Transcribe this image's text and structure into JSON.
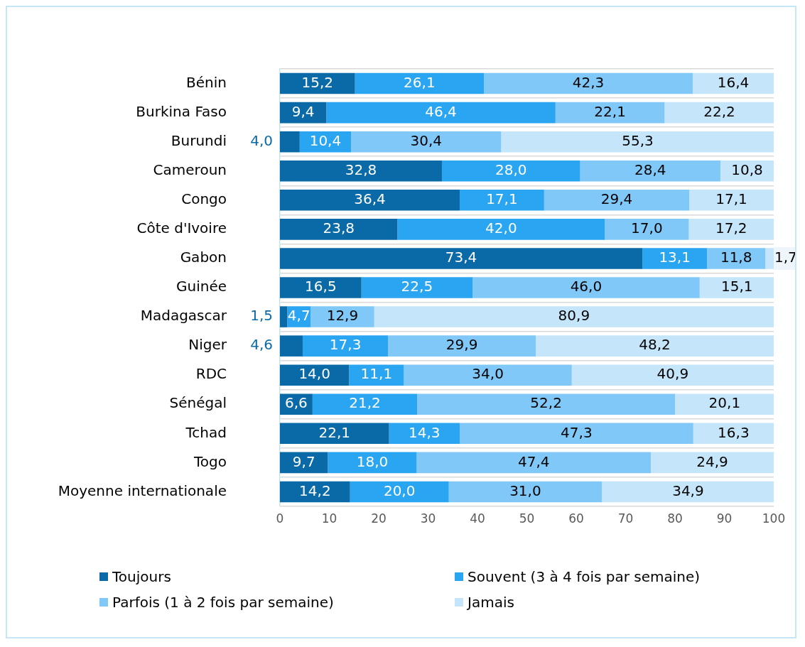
{
  "chart_data": {
    "type": "bar",
    "orientation": "horizontal",
    "stacked": true,
    "grid": "y",
    "legend": "bottom",
    "categories": [
      "Bénin",
      "Burkina Faso",
      "Burundi",
      "Cameroun",
      "Congo",
      "Côte d'Ivoire",
      "Gabon",
      "Guinée",
      "Madagascar",
      "Niger",
      "RDC",
      "Sénégal",
      "Tchad",
      "Togo",
      "Moyenne internationale"
    ],
    "xlim": [
      0,
      100
    ],
    "xticks": [
      0,
      10,
      20,
      30,
      40,
      50,
      60,
      70,
      80,
      90,
      100
    ],
    "series": [
      {
        "name": "Toujours",
        "color": "#0a6aa8",
        "values": [
          15.2,
          9.4,
          4.0,
          32.8,
          36.4,
          23.8,
          73.4,
          16.5,
          1.5,
          4.6,
          14.0,
          6.6,
          22.1,
          9.7,
          14.2
        ],
        "value_labels": [
          "15,2",
          "9,4",
          "4,0",
          "32,8",
          "36,4",
          "23,8",
          "73,4",
          "16,5",
          "1,5",
          "4,6",
          "14,0",
          "6,6",
          "22,1",
          "9,7",
          "14,2"
        ]
      },
      {
        "name": "Souvent (3 à 4 fois par semaine)",
        "color": "#2aa5f2",
        "values": [
          26.1,
          46.4,
          10.4,
          28.0,
          17.1,
          42.0,
          13.1,
          22.5,
          4.7,
          17.3,
          11.1,
          21.2,
          14.3,
          18.0,
          20.0
        ],
        "value_labels": [
          "26,1",
          "46,4",
          "10,4",
          "28,0",
          "17,1",
          "42,0",
          "13,1",
          "22,5",
          "4,7",
          "17,3",
          "11,1",
          "21,2",
          "14,3",
          "18,0",
          "20,0"
        ]
      },
      {
        "name": "Parfois (1 à 2 fois par semaine)",
        "color": "#80c8f8",
        "values": [
          42.3,
          22.1,
          30.4,
          28.4,
          29.4,
          17.0,
          11.8,
          46.0,
          12.9,
          29.9,
          34.0,
          52.2,
          47.3,
          47.4,
          31.0
        ],
        "value_labels": [
          "42,3",
          "22,1",
          "30,4",
          "28,4",
          "29,4",
          "17,0",
          "11,8",
          "46,0",
          "12,9",
          "29,9",
          "34,0",
          "52,2",
          "47,3",
          "47,4",
          "31,0"
        ]
      },
      {
        "name": "Jamais",
        "color": "#c5e6fa",
        "values": [
          16.4,
          22.2,
          55.3,
          10.8,
          17.1,
          17.2,
          1.7,
          15.1,
          80.9,
          48.2,
          40.9,
          20.1,
          16.3,
          24.9,
          34.9
        ],
        "value_labels": [
          "16,4",
          "22,2",
          "55,3",
          "10,8",
          "17,1",
          "17,2",
          "1,7",
          "15,1",
          "80,9",
          "48,2",
          "40,9",
          "20,1",
          "16,3",
          "24,9",
          "34,9"
        ]
      }
    ]
  }
}
